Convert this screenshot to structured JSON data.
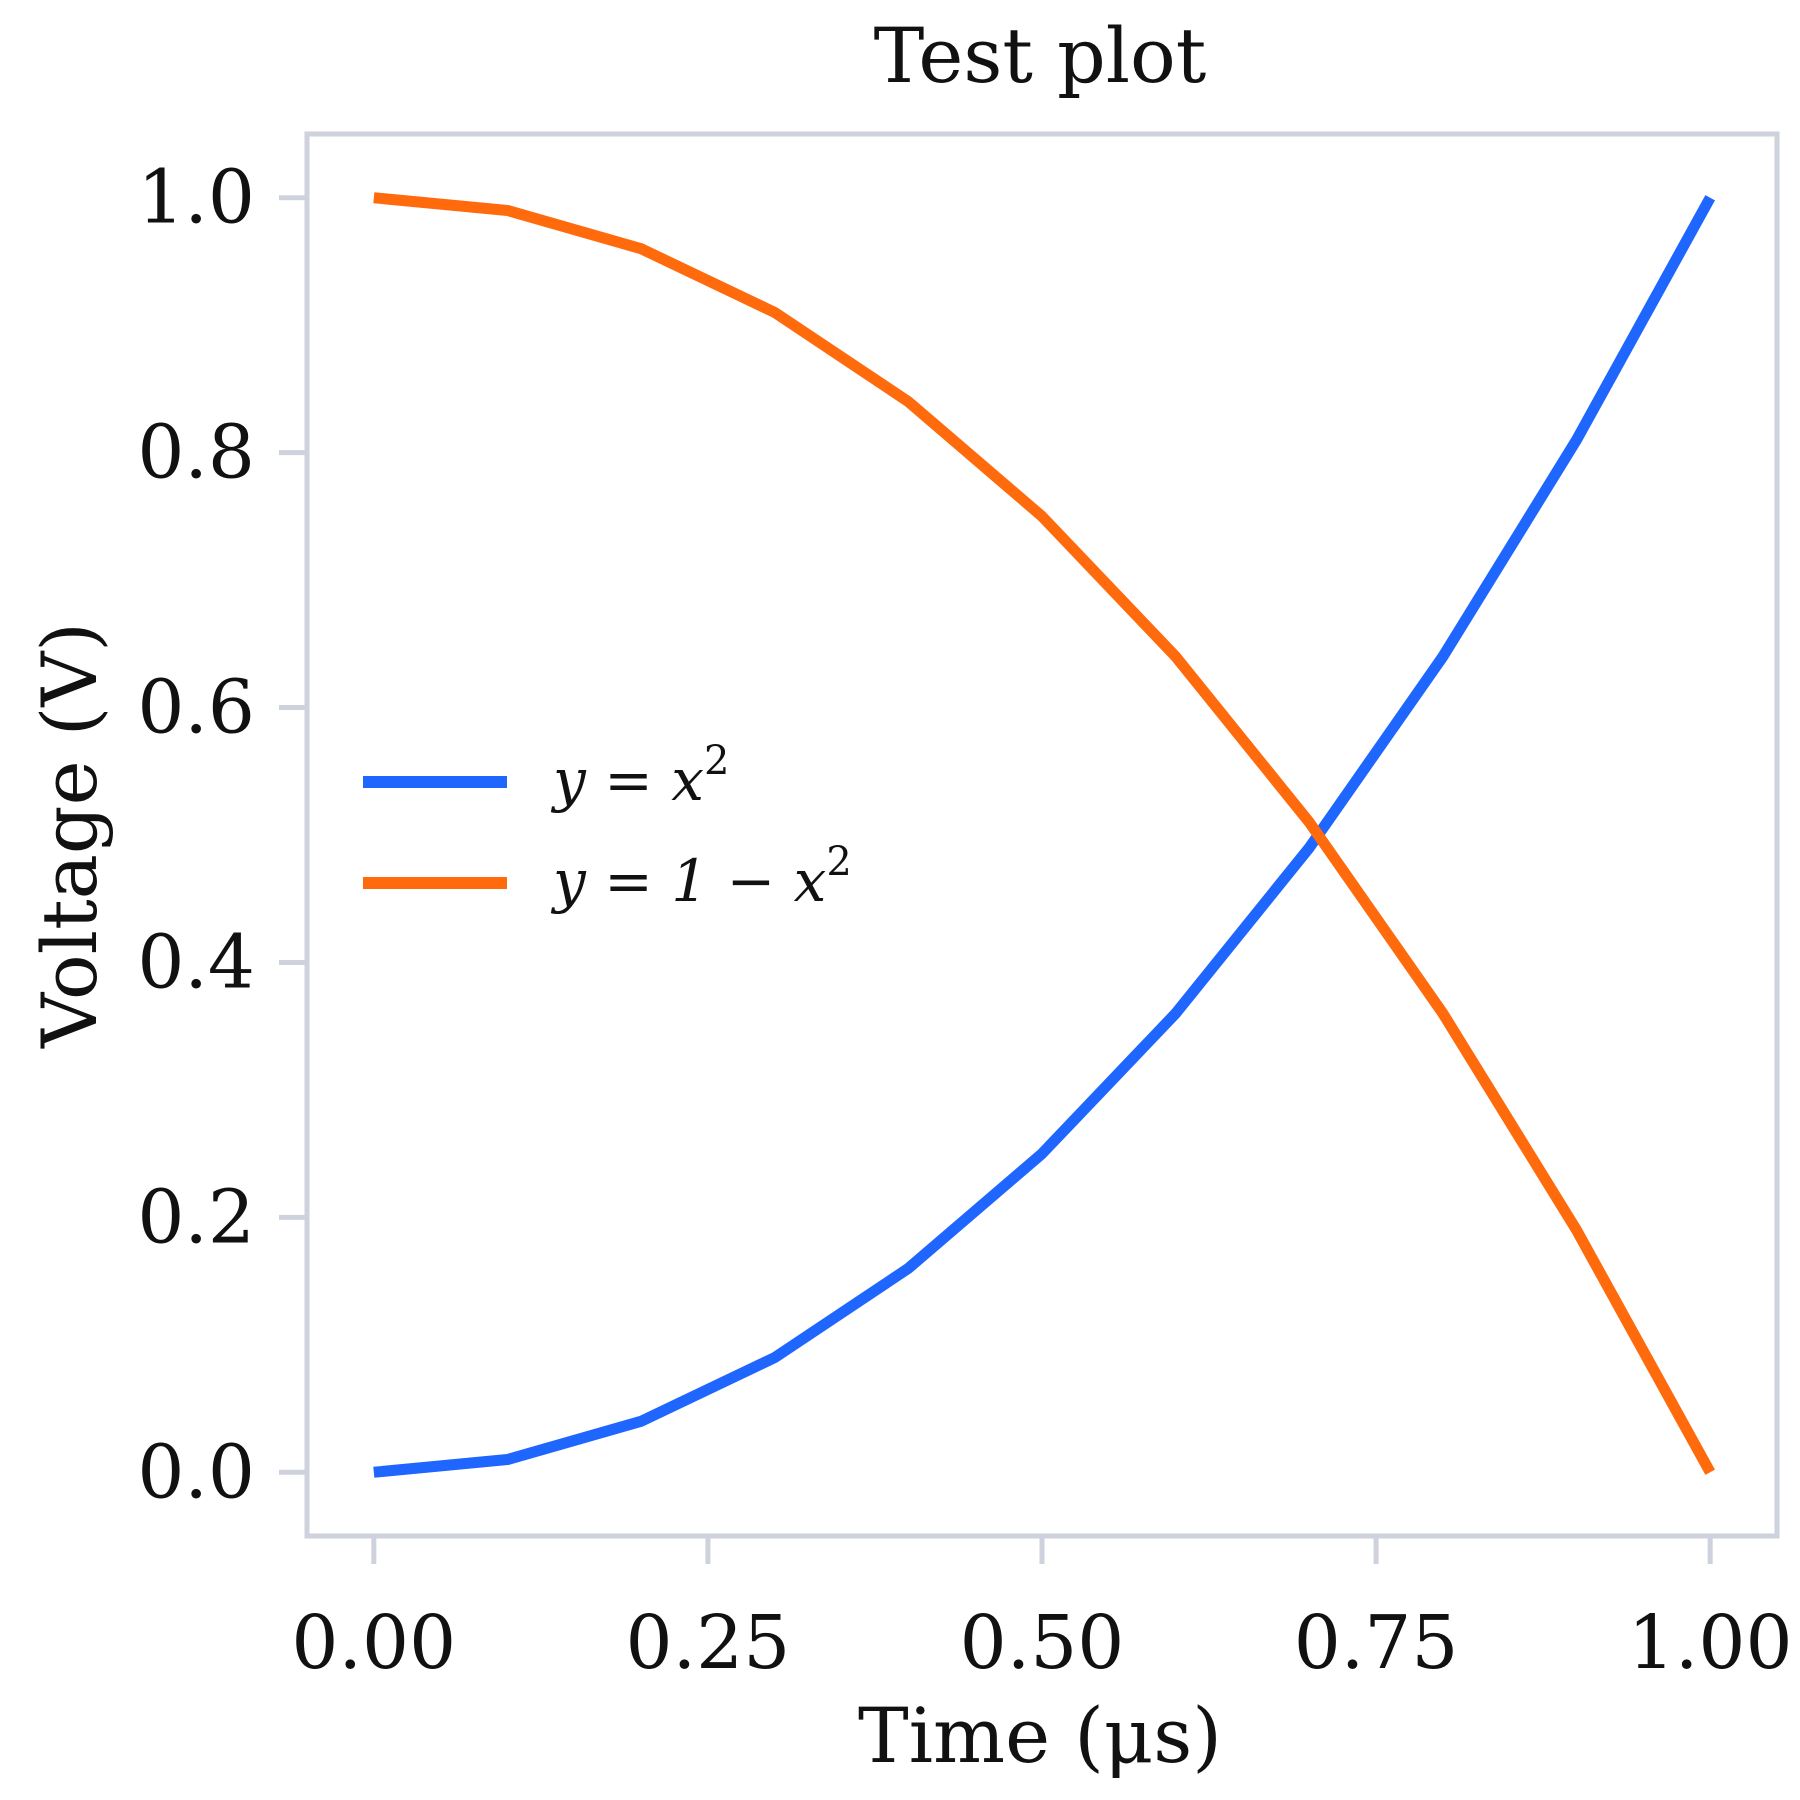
{
  "chart_data": {
    "type": "line",
    "title": "Test plot",
    "xlabel": "Time (μs)",
    "ylabel": "Voltage (V)",
    "xlim": [
      -0.05,
      1.05
    ],
    "ylim": [
      -0.05,
      1.05
    ],
    "xticks": [
      0.0,
      0.25,
      0.5,
      0.75,
      1.0
    ],
    "xtick_labels": [
      "0.00",
      "0.25",
      "0.50",
      "0.75",
      "1.00"
    ],
    "yticks": [
      0.0,
      0.2,
      0.4,
      0.6,
      0.8,
      1.0
    ],
    "ytick_labels": [
      "0.0",
      "0.2",
      "0.4",
      "0.6",
      "0.8",
      "1.0"
    ],
    "grid": false,
    "legend_position": "center-left",
    "x": [
      0.0,
      0.1,
      0.2,
      0.3,
      0.4,
      0.5,
      0.6,
      0.7,
      0.8,
      0.9,
      1.0
    ],
    "series": [
      {
        "name": "y = x^2",
        "legend_main": "y = x",
        "legend_sup": "2",
        "color": "#1f66ff",
        "values": [
          0.0,
          0.01,
          0.04,
          0.09,
          0.16,
          0.25,
          0.36,
          0.49,
          0.64,
          0.81,
          1.0
        ]
      },
      {
        "name": "y = 1 − x^2",
        "legend_main": "y = 1 − x",
        "legend_sup": "2",
        "color": "#ff6a0d",
        "values": [
          1.0,
          0.99,
          0.96,
          0.91,
          0.84,
          0.75,
          0.64,
          0.51,
          0.36,
          0.19,
          0.0
        ]
      }
    ],
    "frame_color": "#cdd2dc"
  }
}
